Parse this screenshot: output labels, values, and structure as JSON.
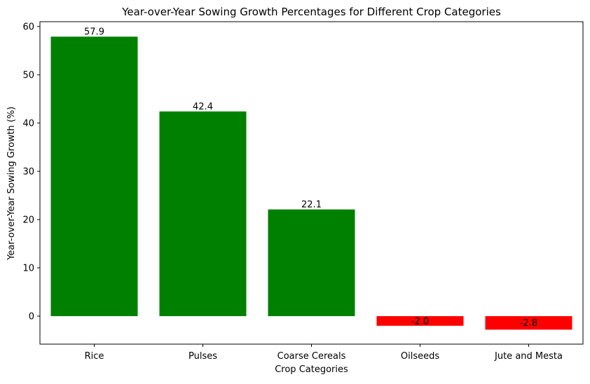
{
  "chart_data": {
    "type": "bar",
    "title": "Year-over-Year Sowing Growth Percentages for Different Crop Categories",
    "xlabel": "Crop Categories",
    "ylabel": "Year-over-Year Sowing Growth (%)",
    "categories": [
      "Rice",
      "Pulses",
      "Coarse Cereals",
      "Oilseeds",
      "Jute and Mesta"
    ],
    "values": [
      57.9,
      42.4,
      22.1,
      -2.0,
      -2.8
    ],
    "value_labels": [
      "57.9",
      "42.4",
      "22.1",
      "-2.0",
      "-2.8"
    ],
    "ylim": [
      -5.8,
      61.0
    ],
    "yticks": [
      0,
      10,
      20,
      30,
      40,
      50,
      60
    ],
    "ytick_labels": [
      "0",
      "10",
      "20",
      "30",
      "40",
      "50",
      "60"
    ],
    "grid": false,
    "colors": {
      "positive": "#008000",
      "negative": "#ff0000"
    }
  }
}
